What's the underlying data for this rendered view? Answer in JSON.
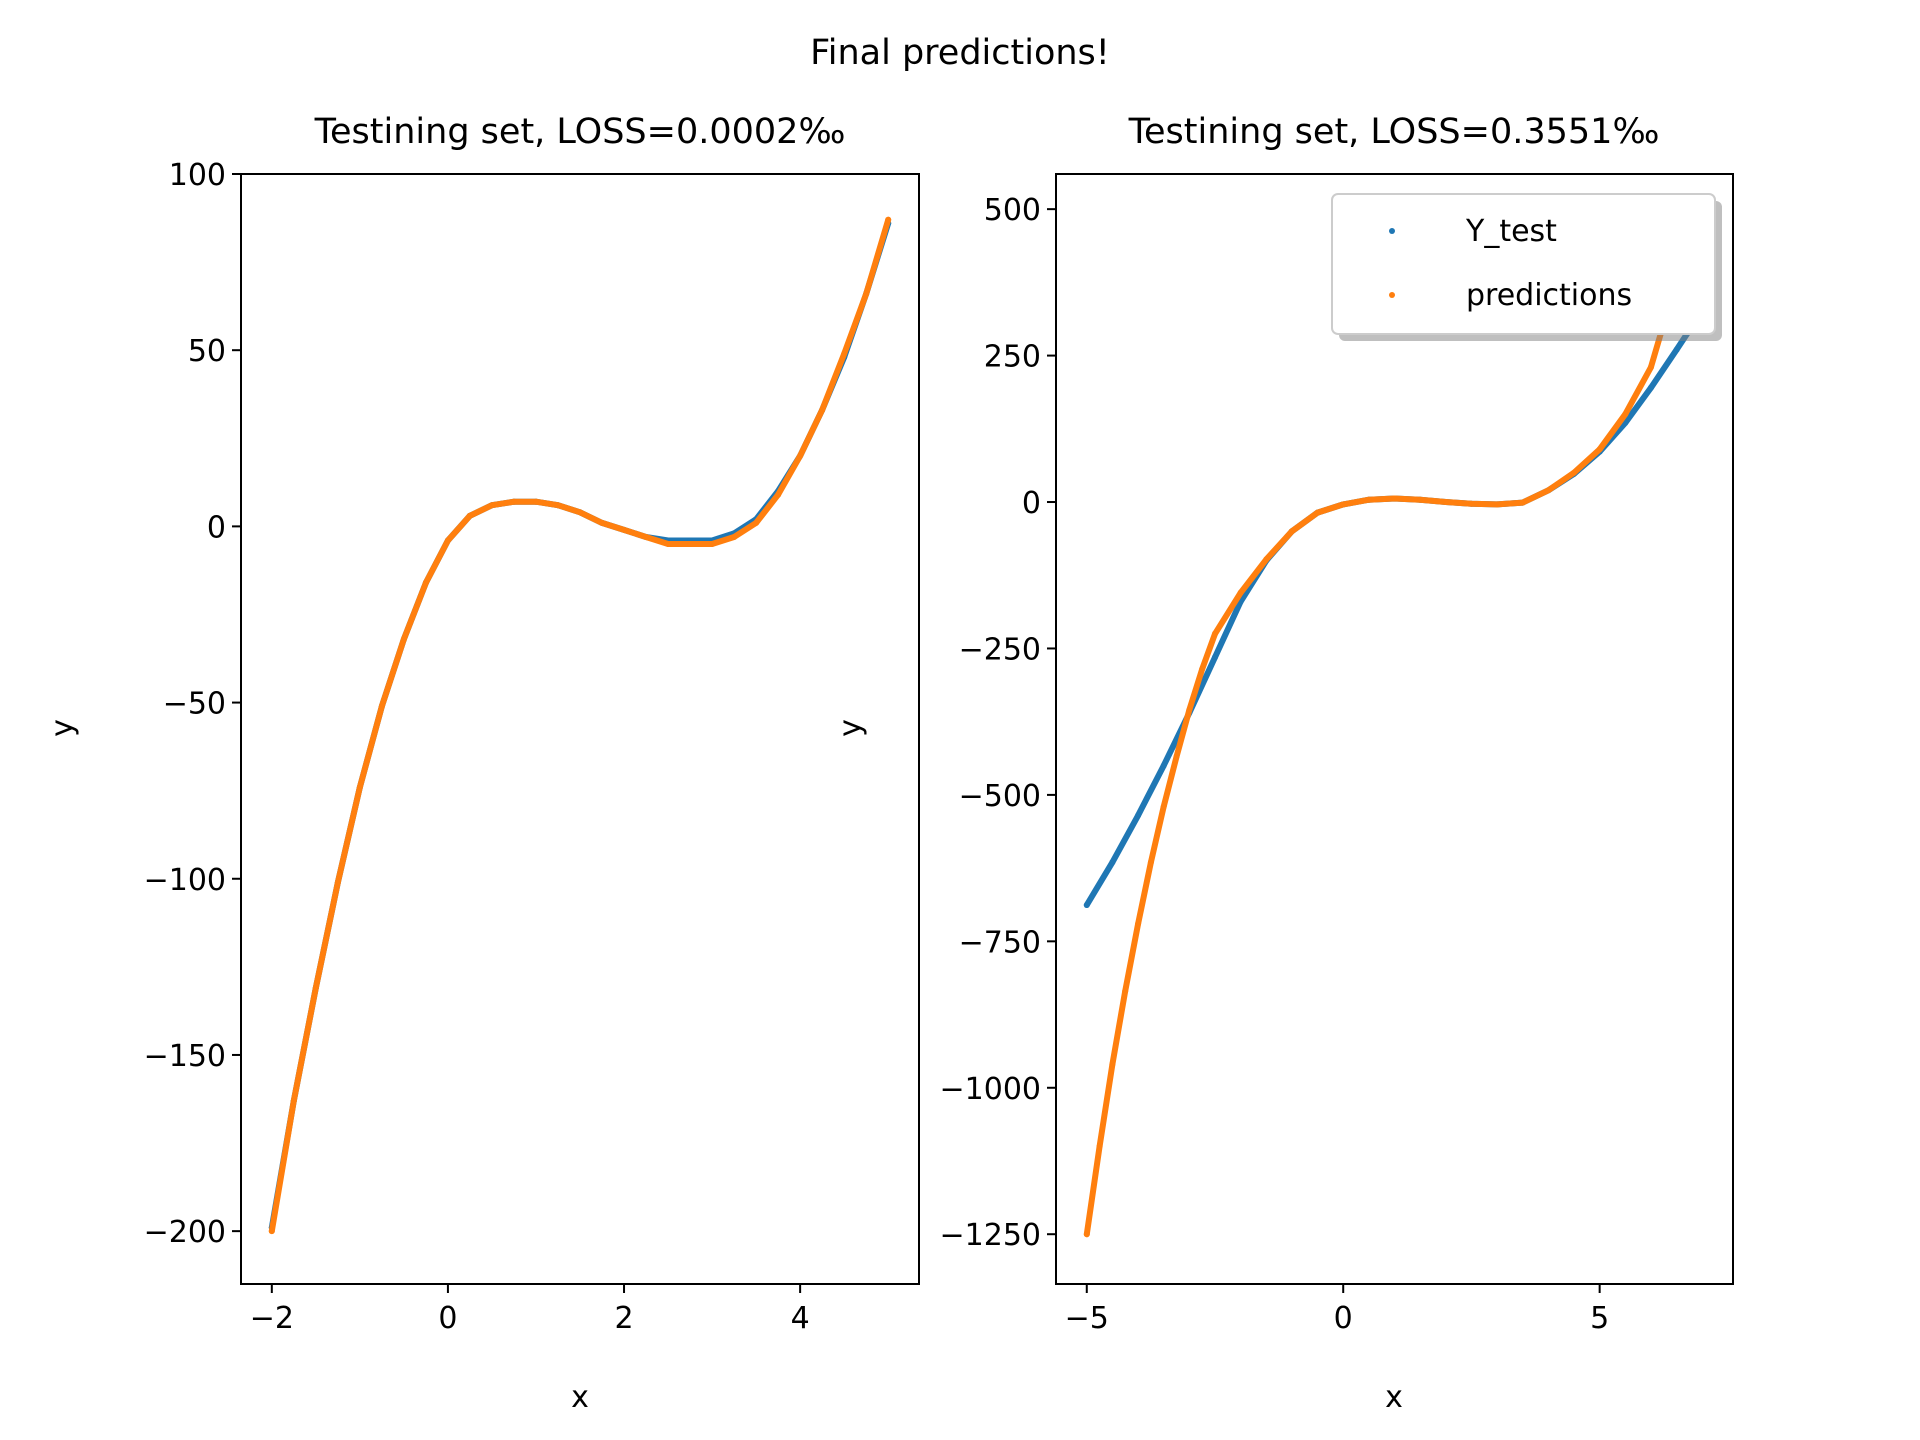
{
  "figure": {
    "suptitle": "Final predictions!"
  },
  "chart_data": [
    {
      "type": "scatter",
      "title": "Testining set, LOSS=0.0002‰",
      "xlabel": "x",
      "ylabel": "y",
      "xlim": [
        -2.35,
        5.35
      ],
      "ylim": [
        -215,
        100
      ],
      "xticks": [
        -2,
        0,
        2,
        4
      ],
      "xtick_labels": [
        "−2",
        "0",
        "2",
        "4"
      ],
      "yticks": [
        100,
        50,
        0,
        -50,
        -100,
        -150,
        -200
      ],
      "ytick_labels": [
        "100",
        "50",
        "0",
        "−50",
        "−100",
        "−150",
        "−200"
      ],
      "grid": false,
      "legend": null,
      "series": [
        {
          "color": "#1f77b4",
          "x": [
            -2.0,
            -1.75,
            -1.5,
            -1.25,
            -1.0,
            -0.75,
            -0.5,
            -0.25,
            0.0,
            0.25,
            0.5,
            0.75,
            1.0,
            1.25,
            1.5,
            1.75,
            2.0,
            2.25,
            2.5,
            2.75,
            3.0,
            3.25,
            3.5,
            3.75,
            4.0,
            4.25,
            4.5,
            4.75,
            5.0
          ],
          "y": [
            -199,
            -163,
            -131,
            -101,
            -74,
            -51,
            -32,
            -16,
            -4,
            3,
            6,
            7,
            7,
            6,
            4,
            1,
            -1,
            -3,
            -4,
            -4,
            -4,
            -2,
            2,
            10,
            20,
            33,
            48,
            66,
            86
          ]
        },
        {
          "color": "#ff7f0e",
          "x": [
            -2.0,
            -1.75,
            -1.5,
            -1.25,
            -1.0,
            -0.75,
            -0.5,
            -0.25,
            0.0,
            0.25,
            0.5,
            0.75,
            1.0,
            1.25,
            1.5,
            1.75,
            2.0,
            2.25,
            2.5,
            2.75,
            3.0,
            3.25,
            3.5,
            3.75,
            4.0,
            4.25,
            4.5,
            4.75,
            5.0
          ],
          "y": [
            -200,
            -163,
            -131,
            -101,
            -74,
            -51,
            -32,
            -16,
            -4,
            3,
            6,
            7,
            7,
            6,
            4,
            1,
            -1,
            -3,
            -5,
            -5,
            -5,
            -3,
            1,
            9,
            20,
            33,
            49,
            66,
            87
          ]
        }
      ]
    },
    {
      "type": "scatter",
      "title": "Testining set, LOSS=0.3551‰",
      "xlabel": "x",
      "ylabel": "y",
      "xlim": [
        -5.6,
        7.6
      ],
      "ylim": [
        -1335,
        560
      ],
      "xticks": [
        -5,
        0,
        5
      ],
      "xtick_labels": [
        "−5",
        "0",
        "5"
      ],
      "yticks": [
        500,
        250,
        0,
        -250,
        -500,
        -750,
        -1000,
        -1250
      ],
      "ytick_labels": [
        "500",
        "250",
        "0",
        "−250",
        "−500",
        "−750",
        "−1000",
        "−1250"
      ],
      "grid": false,
      "legend": "top-right",
      "series": [
        {
          "name": "Y_test",
          "color": "#1f77b4",
          "x": [
            -5.0,
            -4.5,
            -4.0,
            -3.5,
            -3.0,
            -2.5,
            -2.0,
            -1.5,
            -1.0,
            -0.5,
            0.0,
            0.5,
            1.0,
            1.5,
            2.0,
            2.5,
            3.0,
            3.5,
            4.0,
            4.5,
            5.0,
            5.5,
            6.0,
            6.5,
            6.8
          ],
          "y": [
            -688,
            -615,
            -535,
            -450,
            -360,
            -265,
            -170,
            -100,
            -50,
            -18,
            -4,
            4,
            6,
            4,
            0,
            -3,
            -4,
            -1,
            20,
            48,
            86,
            135,
            195,
            260,
            300
          ]
        },
        {
          "name": "predictions",
          "color": "#ff7f0e",
          "x": [
            -5.0,
            -4.75,
            -4.5,
            -4.25,
            -4.0,
            -3.75,
            -3.5,
            -3.25,
            -3.0,
            -2.75,
            -2.5,
            -2.0,
            -1.5,
            -1.0,
            -0.5,
            0.0,
            0.5,
            1.0,
            1.5,
            2.0,
            2.5,
            3.0,
            3.5,
            4.0,
            4.5,
            5.0,
            5.5,
            6.0,
            6.2
          ],
          "y": [
            -1250,
            -1100,
            -960,
            -835,
            -720,
            -615,
            -520,
            -435,
            -355,
            -285,
            -225,
            -155,
            -98,
            -50,
            -18,
            -4,
            4,
            6,
            4,
            0,
            -3,
            -4,
            -1,
            20,
            50,
            90,
            150,
            230,
            290
          ]
        }
      ]
    }
  ]
}
